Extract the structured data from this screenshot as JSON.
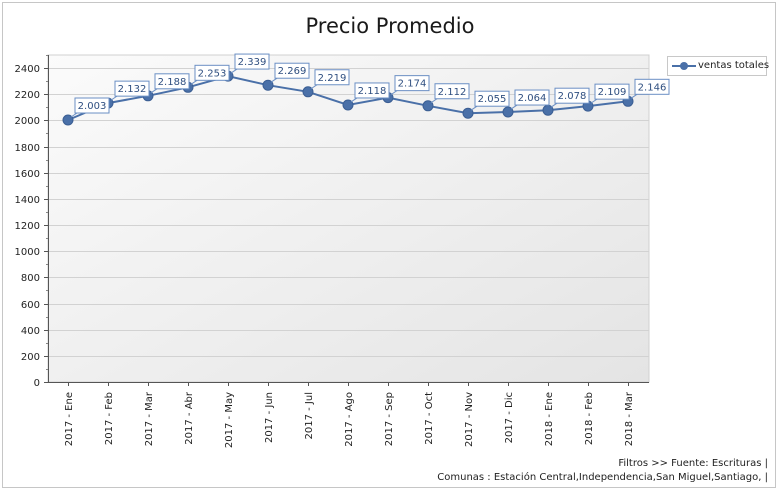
{
  "chart_data": {
    "type": "line",
    "title": "Precio Promedio",
    "xlabel": "",
    "ylabel": "",
    "categories": [
      "2017 - Ene",
      "2017 - Feb",
      "2017 - Mar",
      "2017 - Abr",
      "2017 - May",
      "2017 - Jun",
      "2017 - Jul",
      "2017 - Ago",
      "2017 - Sep",
      "2017 - Oct",
      "2017 - Nov",
      "2017 - Dic",
      "2018 - Ene",
      "2018 - Feb",
      "2018 - Mar"
    ],
    "series": [
      {
        "name": "ventas totales",
        "values": [
          2003,
          2132,
          2188,
          2253,
          2339,
          2269,
          2219,
          2118,
          2174,
          2112,
          2055,
          2064,
          2078,
          2109,
          2146
        ],
        "labels": [
          "2.003",
          "2.132",
          "2.188",
          "2.253",
          "2.339",
          "2.269",
          "2.219",
          "2.118",
          "2.174",
          "2.112",
          "2.055",
          "2.064",
          "2.078",
          "2.109",
          "2.146"
        ]
      }
    ],
    "ylim": [
      0,
      2500
    ],
    "yticks": [
      0,
      200,
      400,
      600,
      800,
      1000,
      1200,
      1400,
      1600,
      1800,
      2000,
      2200,
      2400
    ],
    "grid": true,
    "legend_position": "right",
    "colors": {
      "series": "#4a70a8",
      "label_border": "#6b8fc4",
      "label_text": "#2f4f80"
    }
  },
  "footer": {
    "line1": "Filtros >> Fuente: Escrituras |",
    "line2": "Comunas : Estación Central,Independencia,San Miguel,Santiago, |"
  }
}
